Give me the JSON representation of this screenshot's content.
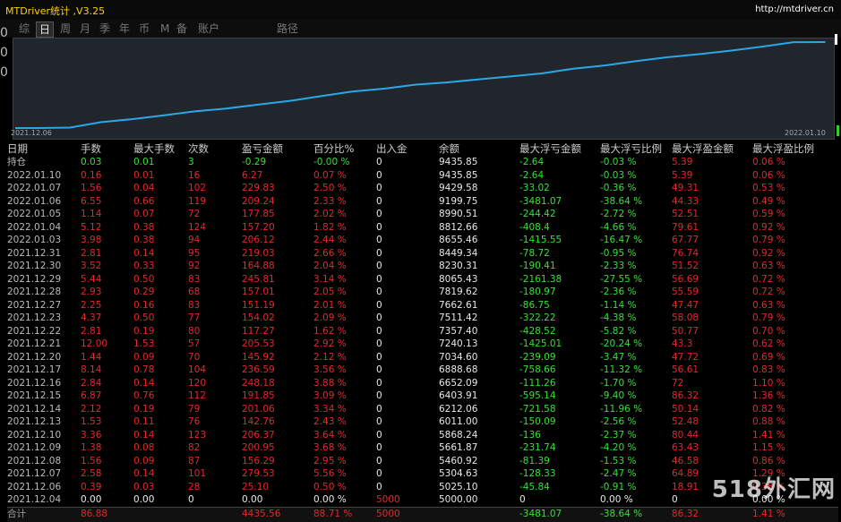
{
  "window": {
    "title": "MTDriver统计 ,V3.25",
    "url": "http://mtdriver.cn"
  },
  "tabs": [
    {
      "label": "综",
      "active": false
    },
    {
      "label": "日",
      "active": true
    },
    {
      "label": "周",
      "active": false
    },
    {
      "label": "月",
      "active": false
    },
    {
      "label": "季",
      "active": false
    },
    {
      "label": "年",
      "active": false
    },
    {
      "label": "币",
      "active": false
    },
    {
      "label": "M",
      "active": false
    },
    {
      "label": "备",
      "active": false
    },
    {
      "label": "账户",
      "active": false
    },
    {
      "label": "路径",
      "active": false
    }
  ],
  "left_edge_glyphs": [
    "0",
    "0",
    "0"
  ],
  "chart": {
    "start_label": "2021.12.06",
    "end_label": "2022.01.10",
    "line_color": "#2aa7e8"
  },
  "chart_data": {
    "type": "line",
    "x": [
      "2021.12.04",
      "2021.12.06",
      "2021.12.07",
      "2021.12.08",
      "2021.12.09",
      "2021.12.10",
      "2021.12.13",
      "2021.12.14",
      "2021.12.15",
      "2021.12.16",
      "2021.12.17",
      "2021.12.20",
      "2021.12.21",
      "2021.12.22",
      "2021.12.23",
      "2021.12.27",
      "2021.12.28",
      "2021.12.29",
      "2021.12.30",
      "2021.12.31",
      "2022.01.03",
      "2022.01.04",
      "2022.01.05",
      "2022.01.06",
      "2022.01.07",
      "2022.01.10"
    ],
    "series": [
      {
        "values": [
          5000,
          5025.1,
          5304.63,
          5460.92,
          5661.87,
          5868.24,
          6011,
          6212.06,
          6403.91,
          6652.09,
          6888.68,
          7034.6,
          7240.13,
          7357.4,
          7511.42,
          7662.61,
          7819.62,
          8065.43,
          8230.31,
          8449.34,
          8655.46,
          8812.66,
          8990.51,
          9199.75,
          9429.58,
          9435.85
        ]
      }
    ]
  },
  "table": {
    "headers": [
      "日期",
      "手数",
      "最大手数",
      "次数",
      "盈亏金额",
      "百分比%",
      "出入金",
      "余额",
      "最大浮亏金额",
      "最大浮亏比例",
      "最大浮盈金额",
      "最大浮盈比例"
    ],
    "rows": [
      {
        "c": [
          "持仓",
          "0.03",
          "0.01",
          "3",
          "-0.29",
          "-0.00 %",
          "0",
          "9435.85",
          "-2.64",
          "-0.03 %",
          "5.39",
          "0.06 %"
        ],
        "k": [
          "date",
          "green",
          "green",
          "green",
          "green",
          "green",
          "white",
          "white",
          "green",
          "green",
          "red",
          "red"
        ]
      },
      {
        "c": [
          "2022.01.10",
          "0.16",
          "0.01",
          "16",
          "6.27",
          "0.07 %",
          "0",
          "9435.85",
          "-2.64",
          "-0.03 %",
          "5.39",
          "0.06 %"
        ],
        "k": [
          "date",
          "red",
          "red",
          "red",
          "red",
          "red",
          "white",
          "white",
          "green",
          "green",
          "red",
          "red"
        ]
      },
      {
        "c": [
          "2022.01.07",
          "1.56",
          "0.04",
          "102",
          "229.83",
          "2.50 %",
          "0",
          "9429.58",
          "-33.02",
          "-0.36 %",
          "49.31",
          "0.53 %"
        ],
        "k": [
          "date",
          "red",
          "red",
          "red",
          "red",
          "red",
          "white",
          "white",
          "green",
          "green",
          "red",
          "red"
        ]
      },
      {
        "c": [
          "2022.01.06",
          "6.55",
          "0.66",
          "119",
          "209.24",
          "2.33 %",
          "0",
          "9199.75",
          "-3481.07",
          "-38.64 %",
          "44.33",
          "0.49 %"
        ],
        "k": [
          "date",
          "red",
          "red",
          "red",
          "red",
          "red",
          "white",
          "white",
          "green",
          "green",
          "red",
          "red"
        ]
      },
      {
        "c": [
          "2022.01.05",
          "1.14",
          "0.07",
          "72",
          "177.85",
          "2.02 %",
          "0",
          "8990.51",
          "-244.42",
          "-2.72 %",
          "52.51",
          "0.59 %"
        ],
        "k": [
          "date",
          "red",
          "red",
          "red",
          "red",
          "red",
          "white",
          "white",
          "green",
          "green",
          "red",
          "red"
        ]
      },
      {
        "c": [
          "2022.01.04",
          "5.12",
          "0.38",
          "124",
          "157.20",
          "1.82 %",
          "0",
          "8812.66",
          "-408.4",
          "-4.66 %",
          "79.61",
          "0.92 %"
        ],
        "k": [
          "date",
          "red",
          "red",
          "red",
          "red",
          "red",
          "white",
          "white",
          "green",
          "green",
          "red",
          "red"
        ]
      },
      {
        "c": [
          "2022.01.03",
          "3.98",
          "0.38",
          "94",
          "206.12",
          "2.44 %",
          "0",
          "8655.46",
          "-1415.55",
          "-16.47 %",
          "67.77",
          "0.79 %"
        ],
        "k": [
          "date",
          "red",
          "red",
          "red",
          "red",
          "red",
          "white",
          "white",
          "green",
          "green",
          "red",
          "red"
        ]
      },
      {
        "c": [
          "2021.12.31",
          "2.81",
          "0.14",
          "95",
          "219.03",
          "2.66 %",
          "0",
          "8449.34",
          "-78.72",
          "-0.95 %",
          "76.74",
          "0.92 %"
        ],
        "k": [
          "date",
          "red",
          "red",
          "red",
          "red",
          "red",
          "white",
          "white",
          "green",
          "green",
          "red",
          "red"
        ]
      },
      {
        "c": [
          "2021.12.30",
          "3.52",
          "0.33",
          "92",
          "164.88",
          "2.04 %",
          "0",
          "8230.31",
          "-190.41",
          "-2.33 %",
          "51.52",
          "0.63 %"
        ],
        "k": [
          "date",
          "red",
          "red",
          "red",
          "red",
          "red",
          "white",
          "white",
          "green",
          "green",
          "red",
          "red"
        ]
      },
      {
        "c": [
          "2021.12.29",
          "5.44",
          "0.50",
          "83",
          "245.81",
          "3.14 %",
          "0",
          "8065.43",
          "-2161.38",
          "-27.55 %",
          "56.69",
          "0.72 %"
        ],
        "k": [
          "date",
          "red",
          "red",
          "red",
          "red",
          "red",
          "white",
          "white",
          "green",
          "green",
          "red",
          "red"
        ]
      },
      {
        "c": [
          "2021.12.28",
          "2.93",
          "0.29",
          "68",
          "157.01",
          "2.05 %",
          "0",
          "7819.62",
          "-180.97",
          "-2.36 %",
          "55.59",
          "0.72 %"
        ],
        "k": [
          "date",
          "red",
          "red",
          "red",
          "red",
          "red",
          "white",
          "white",
          "green",
          "green",
          "red",
          "red"
        ]
      },
      {
        "c": [
          "2021.12.27",
          "2.25",
          "0.16",
          "83",
          "151.19",
          "2.01 %",
          "0",
          "7662.61",
          "-86.75",
          "-1.14 %",
          "47.47",
          "0.63 %"
        ],
        "k": [
          "date",
          "red",
          "red",
          "red",
          "red",
          "red",
          "white",
          "white",
          "green",
          "green",
          "red",
          "red"
        ]
      },
      {
        "c": [
          "2021.12.23",
          "4.37",
          "0.50",
          "77",
          "154.02",
          "2.09 %",
          "0",
          "7511.42",
          "-322.22",
          "-4.38 %",
          "58.08",
          "0.79 %"
        ],
        "k": [
          "date",
          "red",
          "red",
          "red",
          "red",
          "red",
          "white",
          "white",
          "green",
          "green",
          "red",
          "red"
        ]
      },
      {
        "c": [
          "2021.12.22",
          "2.81",
          "0.19",
          "80",
          "117.27",
          "1.62 %",
          "0",
          "7357.40",
          "-428.52",
          "-5.82 %",
          "50.77",
          "0.70 %"
        ],
        "k": [
          "date",
          "red",
          "red",
          "red",
          "red",
          "red",
          "white",
          "white",
          "green",
          "green",
          "red",
          "red"
        ]
      },
      {
        "c": [
          "2021.12.21",
          "12.00",
          "1.53",
          "57",
          "205.53",
          "2.92 %",
          "0",
          "7240.13",
          "-1425.01",
          "-20.24 %",
          "43.3",
          "0.62 %"
        ],
        "k": [
          "date",
          "red",
          "red",
          "red",
          "red",
          "red",
          "white",
          "white",
          "green",
          "green",
          "red",
          "red"
        ]
      },
      {
        "c": [
          "2021.12.20",
          "1.44",
          "0.09",
          "70",
          "145.92",
          "2.12 %",
          "0",
          "7034.60",
          "-239.09",
          "-3.47 %",
          "47.72",
          "0.69 %"
        ],
        "k": [
          "date",
          "red",
          "red",
          "red",
          "red",
          "red",
          "white",
          "white",
          "green",
          "green",
          "red",
          "red"
        ]
      },
      {
        "c": [
          "2021.12.17",
          "8.14",
          "0.78",
          "104",
          "236.59",
          "3.56 %",
          "0",
          "6888.68",
          "-758.66",
          "-11.32 %",
          "56.61",
          "0.83 %"
        ],
        "k": [
          "date",
          "red",
          "red",
          "red",
          "red",
          "red",
          "white",
          "white",
          "green",
          "green",
          "red",
          "red"
        ]
      },
      {
        "c": [
          "2021.12.16",
          "2.84",
          "0.14",
          "120",
          "248.18",
          "3.88 %",
          "0",
          "6652.09",
          "-111.26",
          "-1.70 %",
          "72",
          "1.10 %"
        ],
        "k": [
          "date",
          "red",
          "red",
          "red",
          "red",
          "red",
          "white",
          "white",
          "green",
          "green",
          "red",
          "red"
        ]
      },
      {
        "c": [
          "2021.12.15",
          "6.87",
          "0.76",
          "112",
          "191.85",
          "3.09 %",
          "0",
          "6403.91",
          "-595.14",
          "-9.40 %",
          "86.32",
          "1.36 %"
        ],
        "k": [
          "date",
          "red",
          "red",
          "red",
          "red",
          "red",
          "white",
          "white",
          "green",
          "green",
          "red",
          "red"
        ]
      },
      {
        "c": [
          "2021.12.14",
          "2.12",
          "0.19",
          "79",
          "201.06",
          "3.34 %",
          "0",
          "6212.06",
          "-721.58",
          "-11.96 %",
          "50.14",
          "0.82 %"
        ],
        "k": [
          "date",
          "red",
          "red",
          "red",
          "red",
          "red",
          "white",
          "white",
          "green",
          "green",
          "red",
          "red"
        ]
      },
      {
        "c": [
          "2021.12.13",
          "1.53",
          "0.11",
          "76",
          "142.76",
          "2.43 %",
          "0",
          "6011.00",
          "-150.09",
          "-2.56 %",
          "52.48",
          "0.88 %"
        ],
        "k": [
          "date",
          "red",
          "red",
          "red",
          "red",
          "red",
          "white",
          "white",
          "green",
          "green",
          "red",
          "red"
        ]
      },
      {
        "c": [
          "2021.12.10",
          "3.36",
          "0.14",
          "123",
          "206.37",
          "3.64 %",
          "0",
          "5868.24",
          "-136",
          "-2.37 %",
          "80.44",
          "1.41 %"
        ],
        "k": [
          "date",
          "red",
          "red",
          "red",
          "red",
          "red",
          "white",
          "white",
          "green",
          "green",
          "red",
          "red"
        ]
      },
      {
        "c": [
          "2021.12.09",
          "1.38",
          "0.08",
          "82",
          "200.95",
          "3.68 %",
          "0",
          "5661.87",
          "-231.74",
          "-4.20 %",
          "63.43",
          "1.15 %"
        ],
        "k": [
          "date",
          "red",
          "red",
          "red",
          "red",
          "red",
          "white",
          "white",
          "green",
          "green",
          "red",
          "red"
        ]
      },
      {
        "c": [
          "2021.12.08",
          "1.56",
          "0.09",
          "87",
          "156.29",
          "2.95 %",
          "0",
          "5460.92",
          "-81.39",
          "-1.53 %",
          "46.58",
          "0.86 %"
        ],
        "k": [
          "date",
          "red",
          "red",
          "red",
          "red",
          "red",
          "white",
          "white",
          "green",
          "green",
          "red",
          "red"
        ]
      },
      {
        "c": [
          "2021.12.07",
          "2.58",
          "0.14",
          "101",
          "279.53",
          "5.56 %",
          "0",
          "5304.63",
          "-128.33",
          "-2.47 %",
          "64.89",
          "1.29 %"
        ],
        "k": [
          "date",
          "red",
          "red",
          "red",
          "red",
          "red",
          "white",
          "white",
          "green",
          "green",
          "red",
          "red"
        ]
      },
      {
        "c": [
          "2021.12.06",
          "0.39",
          "0.03",
          "28",
          "25.10",
          "0.50 %",
          "0",
          "5025.10",
          "-45.84",
          "-0.91 %",
          "18.91",
          "0.38 %"
        ],
        "k": [
          "date",
          "red",
          "red",
          "red",
          "red",
          "red",
          "white",
          "white",
          "green",
          "green",
          "red",
          "red"
        ]
      },
      {
        "c": [
          "2021.12.04",
          "0.00",
          "0.00",
          "0",
          "0.00",
          "0.00 %",
          "5000",
          "5000.00",
          "0",
          "0.00 %",
          "0",
          "0.00 %"
        ],
        "k": [
          "date",
          "white",
          "white",
          "white",
          "white",
          "white",
          "red",
          "white",
          "white",
          "white",
          "white",
          "white"
        ]
      }
    ],
    "total": {
      "c": [
        "合计",
        "86.88",
        "",
        "",
        "4435.56",
        "88.71 %",
        "5000",
        "",
        "-3481.07",
        "-38.64 %",
        "86.32",
        "1.41 %"
      ],
      "k": [
        "gray",
        "red",
        "red",
        "red",
        "red",
        "red",
        "red",
        "white",
        "green",
        "green",
        "red",
        "red"
      ]
    }
  },
  "watermark": "518外汇网"
}
